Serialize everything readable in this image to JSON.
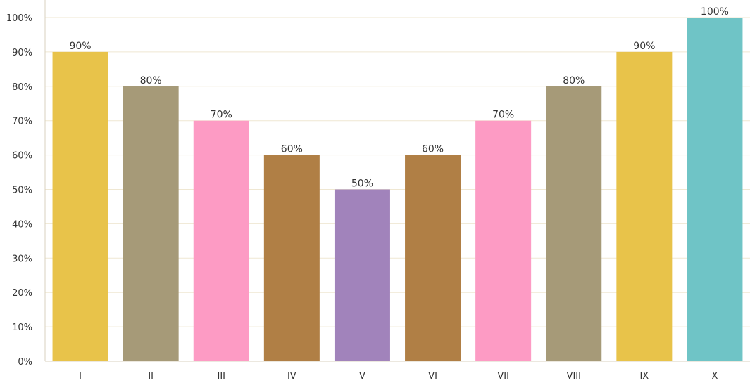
{
  "chart_data": {
    "type": "bar",
    "categories": [
      "I",
      "II",
      "III",
      "IV",
      "V",
      "VI",
      "VII",
      "VIII",
      "IX",
      "X"
    ],
    "values": [
      90,
      80,
      70,
      60,
      50,
      60,
      70,
      80,
      90,
      100
    ],
    "data_labels": [
      "90%",
      "80%",
      "70%",
      "60%",
      "50%",
      "60%",
      "70%",
      "80%",
      "90%",
      "100%"
    ],
    "colors": [
      "#e8c34a",
      "#a69a78",
      "#fd9bc4",
      "#b07f45",
      "#a183bb",
      "#b07f45",
      "#fd9bc4",
      "#a69a78",
      "#e8c34a",
      "#6fc4c6"
    ],
    "y_ticks": [
      0,
      10,
      20,
      30,
      40,
      50,
      60,
      70,
      80,
      90,
      100
    ],
    "y_tick_labels": [
      "0%",
      "10%",
      "20%",
      "30%",
      "40%",
      "50%",
      "60%",
      "70%",
      "80%",
      "90%",
      "100%"
    ],
    "ylim": [
      0,
      100
    ],
    "grid": true,
    "title": "",
    "xlabel": "",
    "ylabel": ""
  }
}
